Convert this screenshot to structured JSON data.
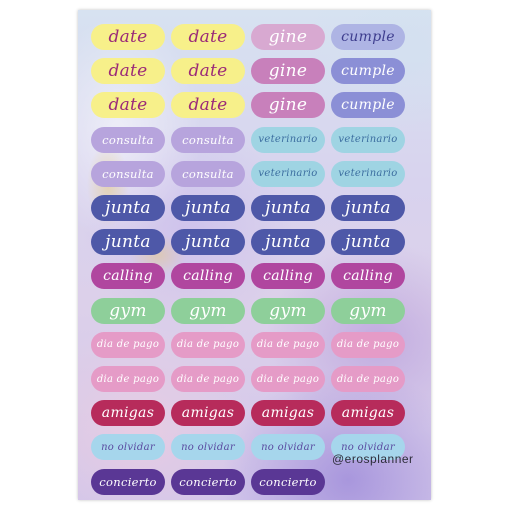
{
  "brand": "@erosplanner",
  "stickers": [
    [
      {
        "text": "date",
        "bg": "#f7f08a",
        "fg": "#9b2a78"
      },
      {
        "text": "date",
        "bg": "#f7f08a",
        "fg": "#9b2a78"
      },
      {
        "text": "gine",
        "bg": "#d8a9d1",
        "fg": "#ffffff"
      },
      {
        "text": "cumple",
        "bg": "#aeb4e4",
        "fg": "#3e3d8e"
      }
    ],
    [
      {
        "text": "date",
        "bg": "#f7f08a",
        "fg": "#9b2a78"
      },
      {
        "text": "date",
        "bg": "#f7f08a",
        "fg": "#9b2a78"
      },
      {
        "text": "gine",
        "bg": "#c880bb",
        "fg": "#ffffff"
      },
      {
        "text": "cumple",
        "bg": "#8b8fd6",
        "fg": "#ffffff"
      }
    ],
    [
      {
        "text": "date",
        "bg": "#f7f08a",
        "fg": "#9b2a78"
      },
      {
        "text": "date",
        "bg": "#f7f08a",
        "fg": "#9b2a78"
      },
      {
        "text": "gine",
        "bg": "#c880bb",
        "fg": "#ffffff"
      },
      {
        "text": "cumple",
        "bg": "#8b8fd6",
        "fg": "#ffffff"
      }
    ],
    [
      {
        "text": "consulta",
        "bg": "#b7a4dd",
        "fg": "#ffffff"
      },
      {
        "text": "consulta",
        "bg": "#b7a4dd",
        "fg": "#ffffff"
      },
      {
        "text": "veterinario",
        "bg": "#9fd4e3",
        "fg": "#3c6ea0"
      },
      {
        "text": "veterinario",
        "bg": "#9fd4e3",
        "fg": "#3c6ea0"
      }
    ],
    [
      {
        "text": "consulta",
        "bg": "#b7a4dd",
        "fg": "#ffffff"
      },
      {
        "text": "consulta",
        "bg": "#b7a4dd",
        "fg": "#ffffff"
      },
      {
        "text": "veterinario",
        "bg": "#9fd4e3",
        "fg": "#3c6ea0"
      },
      {
        "text": "veterinario",
        "bg": "#9fd4e3",
        "fg": "#3c6ea0"
      }
    ],
    [
      {
        "text": "junta",
        "bg": "#4e58a8",
        "fg": "#ffffff"
      },
      {
        "text": "junta",
        "bg": "#4e58a8",
        "fg": "#ffffff"
      },
      {
        "text": "junta",
        "bg": "#4e58a8",
        "fg": "#ffffff"
      },
      {
        "text": "junta",
        "bg": "#4e58a8",
        "fg": "#ffffff"
      }
    ],
    [
      {
        "text": "junta",
        "bg": "#4e58a8",
        "fg": "#ffffff"
      },
      {
        "text": "junta",
        "bg": "#4e58a8",
        "fg": "#ffffff"
      },
      {
        "text": "junta",
        "bg": "#4e58a8",
        "fg": "#ffffff"
      },
      {
        "text": "junta",
        "bg": "#4e58a8",
        "fg": "#ffffff"
      }
    ],
    [
      {
        "text": "calling",
        "bg": "#b0469f",
        "fg": "#ffffff"
      },
      {
        "text": "calling",
        "bg": "#b0469f",
        "fg": "#ffffff"
      },
      {
        "text": "calling",
        "bg": "#b0469f",
        "fg": "#ffffff"
      },
      {
        "text": "calling",
        "bg": "#b0469f",
        "fg": "#ffffff"
      }
    ],
    [
      {
        "text": "gym",
        "bg": "#8ecf9a",
        "fg": "#ffffff"
      },
      {
        "text": "gym",
        "bg": "#8ecf9a",
        "fg": "#ffffff"
      },
      {
        "text": "gym",
        "bg": "#8ecf9a",
        "fg": "#ffffff"
      },
      {
        "text": "gym",
        "bg": "#8ecf9a",
        "fg": "#ffffff"
      }
    ],
    [
      {
        "text": "dia de pago",
        "bg": "#e59bc7",
        "fg": "#ffffff"
      },
      {
        "text": "dia de pago",
        "bg": "#e59bc7",
        "fg": "#ffffff"
      },
      {
        "text": "dia de pago",
        "bg": "#e59bc7",
        "fg": "#ffffff"
      },
      {
        "text": "dia de pago",
        "bg": "#e59bc7",
        "fg": "#ffffff"
      }
    ],
    [
      {
        "text": "dia de pago",
        "bg": "#e59bc7",
        "fg": "#ffffff"
      },
      {
        "text": "dia de pago",
        "bg": "#e59bc7",
        "fg": "#ffffff"
      },
      {
        "text": "dia de pago",
        "bg": "#e59bc7",
        "fg": "#ffffff"
      },
      {
        "text": "dia de pago",
        "bg": "#e59bc7",
        "fg": "#ffffff"
      }
    ],
    [
      {
        "text": "amigas",
        "bg": "#b72b5b",
        "fg": "#ffffff"
      },
      {
        "text": "amigas",
        "bg": "#b72b5b",
        "fg": "#ffffff"
      },
      {
        "text": "amigas",
        "bg": "#b72b5b",
        "fg": "#ffffff"
      },
      {
        "text": "amigas",
        "bg": "#b72b5b",
        "fg": "#ffffff"
      }
    ],
    [
      {
        "text": "no olvidar",
        "bg": "#a6d6ec",
        "fg": "#5a4ba0"
      },
      {
        "text": "no olvidar",
        "bg": "#a6d6ec",
        "fg": "#5a4ba0"
      },
      {
        "text": "no olvidar",
        "bg": "#a6d6ec",
        "fg": "#5a4ba0"
      },
      {
        "text": "no olvidar",
        "bg": "#a6d6ec",
        "fg": "#5a4ba0"
      }
    ],
    [
      {
        "text": "concierto",
        "bg": "#5a3795",
        "fg": "#ffffff"
      },
      {
        "text": "concierto",
        "bg": "#5a3795",
        "fg": "#ffffff"
      },
      {
        "text": "concierto",
        "bg": "#5a3795",
        "fg": "#ffffff"
      }
    ]
  ]
}
